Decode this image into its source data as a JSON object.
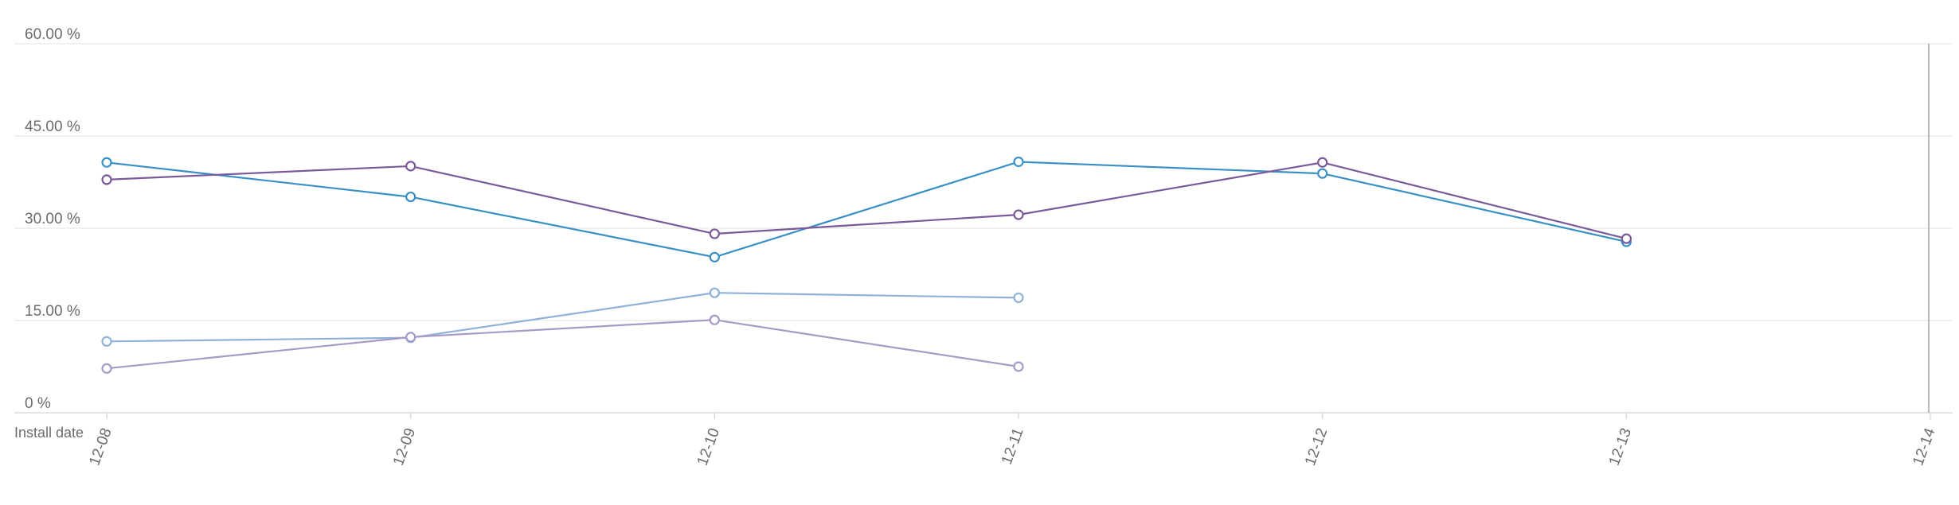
{
  "colors": {
    "background": "#ffffff",
    "gridline": "#ececec",
    "axis_line": "#dcdcdc",
    "current_marker": "#b8b8b8",
    "tick_text": "#6b6b6b"
  },
  "chart_data": {
    "type": "line",
    "x_axis_label": "Install date",
    "x": [
      "12-08",
      "12-09",
      "12-10",
      "12-11",
      "12-12",
      "12-13",
      "12-14"
    ],
    "y_ticks": [
      "0 %",
      "15.00 %",
      "30.00 %",
      "45.00 %",
      "60.00 %"
    ],
    "ylim": [
      0,
      60
    ],
    "y_unit": "%",
    "grid": true,
    "legend": "none",
    "current_marker_x": "12-14",
    "series": [
      {
        "color": "#3a8fc4",
        "values": [
          40.7,
          35.1,
          25.3,
          40.8,
          38.9,
          27.8,
          null
        ]
      },
      {
        "color": "#7a5a9a",
        "values": [
          37.9,
          40.1,
          29.1,
          32.2,
          40.7,
          28.3,
          null
        ]
      },
      {
        "color": "#8fb2d9",
        "values": [
          11.6,
          12.2,
          19.5,
          18.7,
          null,
          null,
          null
        ]
      },
      {
        "color": "#a89ac8",
        "values": [
          7.2,
          12.3,
          15.1,
          7.5,
          null,
          null,
          null
        ]
      }
    ]
  }
}
